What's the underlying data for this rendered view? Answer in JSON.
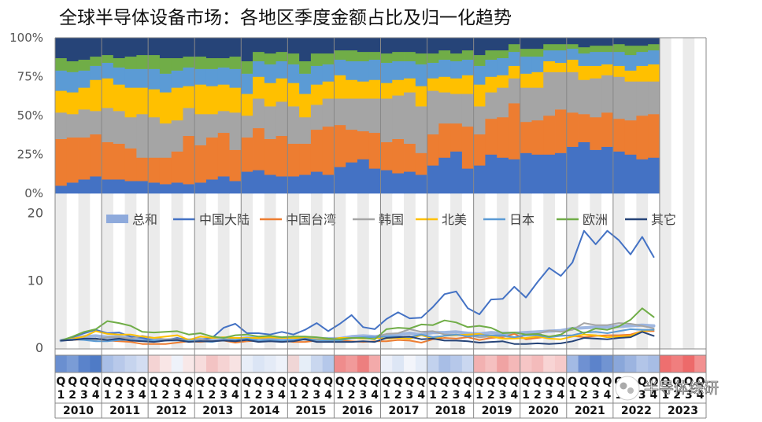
{
  "title": "全球半导体设备市场：各地区季度金额占比及归一化趋势",
  "watermark": "半导体综研",
  "colors": {
    "总和": "#8eaadc",
    "中国大陆": "#4472c4",
    "中国台湾": "#ed7d31",
    "韩国": "#a5a5a5",
    "北美": "#ffc000",
    "日本": "#5b9bd5",
    "欧洲": "#70ad47",
    "其它": "#264478"
  },
  "chart_data": [
    {
      "type": "area",
      "stacked": true,
      "years": [
        "2010",
        "2011",
        "2012",
        "2013",
        "2014",
        "2015",
        "2016",
        "2017",
        "2018",
        "2019",
        "2020",
        "2021",
        "2022",
        "2023"
      ],
      "quarter_labels": [
        "Q",
        "Q",
        "Q",
        "Q"
      ],
      "quarter_numbers": [
        "1",
        "2",
        "3",
        "4"
      ],
      "quarters_with_data": 52,
      "yticks": [
        "0%",
        "25%",
        "50%",
        "75%",
        "100%"
      ],
      "ylim": [
        0,
        100
      ],
      "series": [
        {
          "name": "中国大陆",
          "values": [
            5,
            7,
            9,
            11,
            9,
            9,
            8,
            8,
            7,
            6,
            7,
            6,
            7,
            9,
            11,
            8,
            14,
            15,
            12,
            11,
            11,
            12,
            14,
            12,
            17,
            20,
            22,
            16,
            15,
            13,
            14,
            12,
            18,
            23,
            27,
            16,
            18,
            25,
            23,
            22,
            26,
            25,
            25,
            26,
            30,
            33,
            28,
            30,
            27,
            25,
            22,
            23
          ]
        },
        {
          "name": "中国台湾",
          "values": [
            30,
            29,
            27,
            27,
            24,
            23,
            21,
            15,
            16,
            17,
            20,
            31,
            24,
            27,
            28,
            20,
            22,
            27,
            23,
            26,
            21,
            20,
            27,
            31,
            27,
            21,
            18,
            23,
            18,
            22,
            18,
            14,
            20,
            22,
            18,
            27,
            20,
            23,
            26,
            36,
            20,
            22,
            25,
            28,
            22,
            18,
            21,
            22,
            21,
            22,
            28,
            28
          ]
        },
        {
          "name": "韩国",
          "values": [
            17,
            15,
            18,
            15,
            22,
            21,
            20,
            28,
            26,
            22,
            20,
            18,
            20,
            15,
            14,
            24,
            14,
            19,
            21,
            22,
            24,
            17,
            16,
            18,
            17,
            20,
            21,
            22,
            28,
            28,
            33,
            30,
            28,
            20,
            19,
            21,
            18,
            17,
            19,
            16,
            22,
            21,
            28,
            24,
            26,
            22,
            25,
            24,
            27,
            25,
            22,
            21
          ]
        },
        {
          "name": "北美",
          "values": [
            14,
            14,
            14,
            20,
            19,
            17,
            19,
            17,
            18,
            20,
            21,
            14,
            19,
            18,
            17,
            16,
            14,
            14,
            15,
            15,
            15,
            15,
            13,
            11,
            15,
            12,
            11,
            12,
            10,
            10,
            9,
            13,
            8,
            10,
            10,
            12,
            14,
            10,
            8,
            8,
            9,
            10,
            7,
            6,
            8,
            9,
            8,
            7,
            7,
            7,
            10,
            11
          ]
        },
        {
          "name": "日本",
          "values": [
            13,
            13,
            11,
            9,
            10,
            11,
            12,
            12,
            13,
            12,
            11,
            12,
            10,
            11,
            11,
            12,
            13,
            10,
            12,
            11,
            12,
            13,
            12,
            11,
            10,
            12,
            13,
            13,
            13,
            12,
            11,
            14,
            10,
            11,
            11,
            10,
            12,
            11,
            11,
            9,
            11,
            10,
            7,
            8,
            7,
            8,
            9,
            8,
            9,
            10,
            9,
            9
          ]
        },
        {
          "name": "欧洲",
          "values": [
            8,
            7,
            7,
            6,
            5,
            6,
            8,
            9,
            9,
            10,
            8,
            7,
            8,
            7,
            6,
            8,
            8,
            6,
            7,
            6,
            7,
            8,
            8,
            7,
            6,
            7,
            6,
            5,
            6,
            6,
            6,
            7,
            6,
            6,
            5,
            6,
            7,
            6,
            5,
            5,
            5,
            5,
            4,
            4,
            3,
            4,
            4,
            4,
            5,
            6,
            4,
            4
          ]
        },
        {
          "name": "其它",
          "values": [
            13,
            15,
            14,
            12,
            11,
            13,
            12,
            11,
            11,
            13,
            13,
            12,
            12,
            13,
            13,
            12,
            15,
            9,
            10,
            9,
            10,
            15,
            10,
            10,
            8,
            8,
            9,
            9,
            10,
            9,
            9,
            10,
            10,
            8,
            10,
            8,
            11,
            8,
            8,
            4,
            7,
            7,
            4,
            4,
            4,
            6,
            5,
            5,
            4,
            5,
            5,
            4
          ]
        }
      ]
    },
    {
      "type": "line",
      "categories_from": "quarters 2010 Q1 - 2022 Q4",
      "yticks": [
        "0",
        "10",
        "20"
      ],
      "ylim": [
        0,
        21
      ],
      "legend": [
        "总和",
        "中国大陆",
        "中国台湾",
        "韩国",
        "北美",
        "日本",
        "欧洲",
        "其它"
      ],
      "series": [
        {
          "name": "总和",
          "values": [
            1,
            1.3,
            1.6,
            1.7,
            1.5,
            1.6,
            1.4,
            1.3,
            1.1,
            1.1,
            1.2,
            1.1,
            1.2,
            1.1,
            1.3,
            1.2,
            1.4,
            1.4,
            1.4,
            1.3,
            1.3,
            1.3,
            1.3,
            1.3,
            1.3,
            1.6,
            1.7,
            1.6,
            1.8,
            1.9,
            2.1,
            1.9,
            2.2,
            2.2,
            2.3,
            2.1,
            2.0,
            2.2,
            2.1,
            2.1,
            2.2,
            2.3,
            2.4,
            2.5,
            2.8,
            2.9,
            3.0,
            3.0,
            3.1,
            3.2,
            3.3,
            3.2
          ]
        },
        {
          "name": "中国大陆",
          "values": [
            1,
            1.5,
            2.1,
            2.6,
            2.1,
            2.2,
            1.6,
            1.4,
            1.0,
            1.0,
            1.4,
            1.0,
            1.1,
            1.4,
            2.9,
            3.5,
            2.1,
            2.1,
            1.9,
            2.3,
            1.9,
            2.6,
            3.6,
            2.4,
            3.5,
            4.8,
            3.0,
            2.7,
            4.2,
            5.2,
            4.3,
            4.4,
            6.0,
            7.9,
            8.3,
            5.8,
            4.9,
            7.1,
            7.2,
            9.0,
            7.4,
            9.7,
            11.8,
            10.6,
            12.6,
            17.3,
            15.3,
            17.3,
            15.9,
            13.8,
            16.4,
            13.4
          ]
        },
        {
          "name": "中国台湾",
          "values": [
            1,
            1.1,
            1.2,
            1.3,
            1.0,
            0.9,
            0.8,
            0.5,
            0.5,
            0.5,
            0.7,
            0.9,
            0.8,
            0.9,
            1.0,
            0.7,
            0.9,
            1.0,
            0.9,
            1.0,
            0.8,
            0.8,
            1.0,
            1.2,
            1.0,
            0.9,
            0.8,
            0.9,
            0.9,
            1.1,
            1.0,
            0.7,
            1.2,
            1.4,
            1.3,
            1.5,
            1.1,
            1.4,
            1.5,
            2.0,
            1.2,
            1.4,
            1.6,
            1.8,
            1.7,
            1.5,
            1.7,
            1.8,
            1.8,
            1.9,
            2.4,
            2.4
          ]
        },
        {
          "name": "韩国",
          "values": [
            1,
            1.1,
            1.3,
            1.1,
            1.5,
            1.5,
            1.3,
            1.7,
            1.4,
            1.2,
            1.2,
            1.0,
            1.2,
            0.9,
            1.1,
            1.4,
            1.0,
            1.3,
            1.3,
            1.4,
            1.4,
            1.1,
            1.0,
            1.1,
            1.1,
            1.3,
            1.4,
            1.5,
            2.0,
            2.1,
            2.7,
            2.3,
            2.4,
            1.9,
            1.9,
            1.8,
            1.5,
            1.6,
            1.7,
            1.4,
            1.9,
            2.0,
            2.5,
            2.3,
            2.6,
            3.6,
            3.3,
            3.3,
            3.6,
            3.5,
            3.2,
            2.8
          ]
        },
        {
          "name": "北美",
          "values": [
            1,
            1.3,
            1.6,
            2.4,
            2.0,
            1.9,
            1.9,
            1.6,
            1.4,
            1.6,
            1.8,
            1.1,
            1.6,
            1.4,
            1.5,
            1.4,
            1.4,
            1.4,
            1.5,
            1.4,
            1.4,
            1.4,
            1.2,
            1.1,
            1.4,
            1.4,
            1.3,
            1.4,
            1.3,
            1.4,
            1.3,
            1.8,
            1.3,
            1.7,
            1.8,
            1.9,
            2.0,
            1.6,
            1.3,
            1.3,
            1.4,
            1.6,
            1.3,
            1.2,
            1.6,
            1.9,
            1.8,
            1.5,
            1.6,
            1.7,
            2.4,
            2.6
          ]
        },
        {
          "name": "日本",
          "values": [
            1,
            1.2,
            1.1,
            0.9,
            0.9,
            1.1,
            1.1,
            1.0,
            1.0,
            1.0,
            1.0,
            1.0,
            0.9,
            0.8,
            1.1,
            1.1,
            1.3,
            1.0,
            1.1,
            1.0,
            1.1,
            1.3,
            1.1,
            1.0,
            1.0,
            1.4,
            1.5,
            1.5,
            1.6,
            1.6,
            1.5,
            1.9,
            1.5,
            1.7,
            1.9,
            1.6,
            1.8,
            1.8,
            1.8,
            1.5,
            1.8,
            1.8,
            1.5,
            1.7,
            1.8,
            2.2,
            2.3,
            2.1,
            2.4,
            2.7,
            2.6,
            2.6
          ]
        },
        {
          "name": "欧洲",
          "values": [
            1,
            1.6,
            2.3,
            2.7,
            3.9,
            3.6,
            3.2,
            2.3,
            2.2,
            2.3,
            2.4,
            1.9,
            2.1,
            1.6,
            1.4,
            1.8,
            1.9,
            1.6,
            1.7,
            1.5,
            1.6,
            1.6,
            1.5,
            1.3,
            1.2,
            1.4,
            1.4,
            1.2,
            2.7,
            2.9,
            2.8,
            3.4,
            3.3,
            4.0,
            3.7,
            3.0,
            3.2,
            2.9,
            2.1,
            2.2,
            1.9,
            2.0,
            1.6,
            1.9,
            2.9,
            2.1,
            2.8,
            2.6,
            3.1,
            4.1,
            5.8,
            4.5
          ]
        },
        {
          "name": "其它",
          "values": [
            1,
            1.1,
            1.3,
            1.3,
            1.1,
            1.3,
            1.0,
            0.9,
            0.8,
            1.0,
            1.1,
            0.8,
            0.9,
            0.9,
            1.0,
            0.9,
            1.1,
            0.8,
            0.9,
            0.8,
            0.9,
            1.2,
            0.8,
            0.8,
            0.8,
            0.8,
            0.9,
            0.8,
            1.4,
            1.5,
            1.6,
            1.2,
            1.3,
            1.0,
            1.0,
            0.9,
            0.7,
            0.8,
            0.9,
            0.5,
            0.5,
            0.6,
            0.5,
            0.6,
            0.9,
            1.4,
            1.3,
            1.2,
            1.4,
            1.5,
            2.3,
            1.7
          ]
        }
      ]
    }
  ],
  "heat_strip": [
    {
      "q": 0,
      "c": "#6a8fd0"
    },
    {
      "q": 1,
      "c": "#7a9cd6"
    },
    {
      "q": 2,
      "c": "#5a83cb"
    },
    {
      "q": 3,
      "c": "#4f7bc6"
    },
    {
      "q": 4,
      "c": "#a9bfe6"
    },
    {
      "q": 5,
      "c": "#b8c9ea"
    },
    {
      "q": 6,
      "c": "#c6d4ee"
    },
    {
      "q": 7,
      "c": "#d3ddf2"
    },
    {
      "q": 8,
      "c": "#f4d3d3"
    },
    {
      "q": 9,
      "c": "#f9e6e6"
    },
    {
      "q": 10,
      "c": "#eef2fa"
    },
    {
      "q": 11,
      "c": "#f8e8e8"
    },
    {
      "q": 12,
      "c": "#f7dcdc"
    },
    {
      "q": 13,
      "c": "#f3c3c3"
    },
    {
      "q": 14,
      "c": "#f6d3d3"
    },
    {
      "q": 15,
      "c": "#f8e3e3"
    },
    {
      "q": 16,
      "c": "#e8eef8"
    },
    {
      "q": 17,
      "c": "#dbe5f5"
    },
    {
      "q": 18,
      "c": "#e4ebf7"
    },
    {
      "q": 19,
      "c": "#eef2fa"
    },
    {
      "q": 20,
      "c": "#f0d6d6"
    },
    {
      "q": 21,
      "c": "#e6eef8"
    },
    {
      "q": 22,
      "c": "#c9d7ef"
    },
    {
      "q": 23,
      "c": "#b5c8ea"
    },
    {
      "q": 24,
      "c": "#ef8c8c"
    },
    {
      "q": 25,
      "c": "#f19a9a"
    },
    {
      "q": 26,
      "c": "#ed7f7f"
    },
    {
      "q": 27,
      "c": "#f3aaaa"
    },
    {
      "q": 28,
      "c": "#ecf0f9"
    },
    {
      "q": 29,
      "c": "#dde6f5"
    },
    {
      "q": 30,
      "c": "#f3f5fb"
    },
    {
      "q": 31,
      "c": "#e5ecf8"
    },
    {
      "q": 32,
      "c": "#c2d2ee"
    },
    {
      "q": 33,
      "c": "#a8bee6"
    },
    {
      "q": 34,
      "c": "#b6c8ea"
    },
    {
      "q": 35,
      "c": "#cad7f0"
    },
    {
      "q": 36,
      "c": "#f2b1b1"
    },
    {
      "q": 37,
      "c": "#f5c0c0"
    },
    {
      "q": 38,
      "c": "#f0a3a3"
    },
    {
      "q": 39,
      "c": "#f4b8b8"
    },
    {
      "q": 40,
      "c": "#f6c6c6"
    },
    {
      "q": 41,
      "c": "#f4bbbb"
    },
    {
      "q": 42,
      "c": "#f8d4d4"
    },
    {
      "q": 43,
      "c": "#f6caca"
    },
    {
      "q": 44,
      "c": "#a3bae4"
    },
    {
      "q": 45,
      "c": "#6f91d2"
    },
    {
      "q": 46,
      "c": "#5c83cb"
    },
    {
      "q": 47,
      "c": "#7194d2"
    },
    {
      "q": 48,
      "c": "#8aa7da"
    },
    {
      "q": 49,
      "c": "#9cb4e0"
    },
    {
      "q": 50,
      "c": "#b2c5e8"
    },
    {
      "q": 51,
      "c": "#a7bde5"
    },
    {
      "q": 52,
      "c": "#ee6f6f"
    },
    {
      "q": 53,
      "c": "#f07e7e"
    },
    {
      "q": 54,
      "c": "#ed6a6a"
    },
    {
      "q": 55,
      "c": "#f29090"
    }
  ]
}
